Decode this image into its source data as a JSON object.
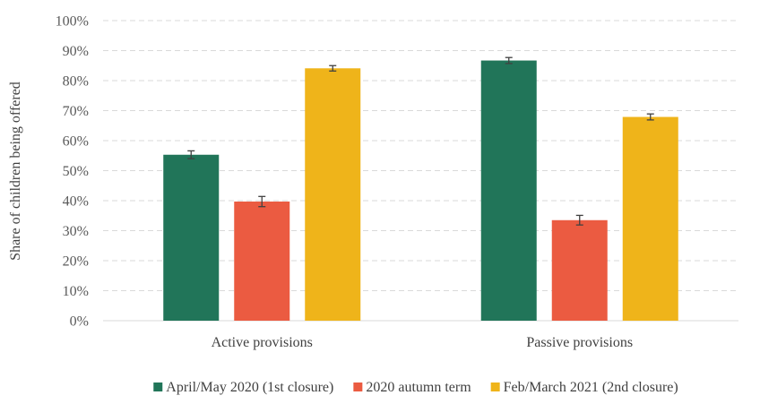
{
  "chart_data": {
    "type": "bar",
    "title": "",
    "xlabel": "",
    "ylabel": "Share of children being offered",
    "ylim": [
      0,
      100
    ],
    "yticks": [
      "0%",
      "10%",
      "20%",
      "30%",
      "40%",
      "50%",
      "60%",
      "70%",
      "80%",
      "90%",
      "100%"
    ],
    "grid": true,
    "legend_position": "bottom",
    "categories": [
      "Active provisions",
      "Passive provisions"
    ],
    "series": [
      {
        "name": "April/May 2020 (1st closure)",
        "color": "#217559",
        "values": [
          55.3,
          86.7
        ],
        "errors": [
          1.3,
          1.0
        ]
      },
      {
        "name": "2020 autumn term",
        "color": "#eb5b41",
        "values": [
          39.7,
          33.5
        ],
        "errors": [
          1.7,
          1.6
        ]
      },
      {
        "name": "Feb/March 2021 (2nd closure)",
        "color": "#efb41a",
        "values": [
          84.1,
          67.9
        ],
        "errors": [
          0.9,
          1.0
        ]
      }
    ]
  }
}
